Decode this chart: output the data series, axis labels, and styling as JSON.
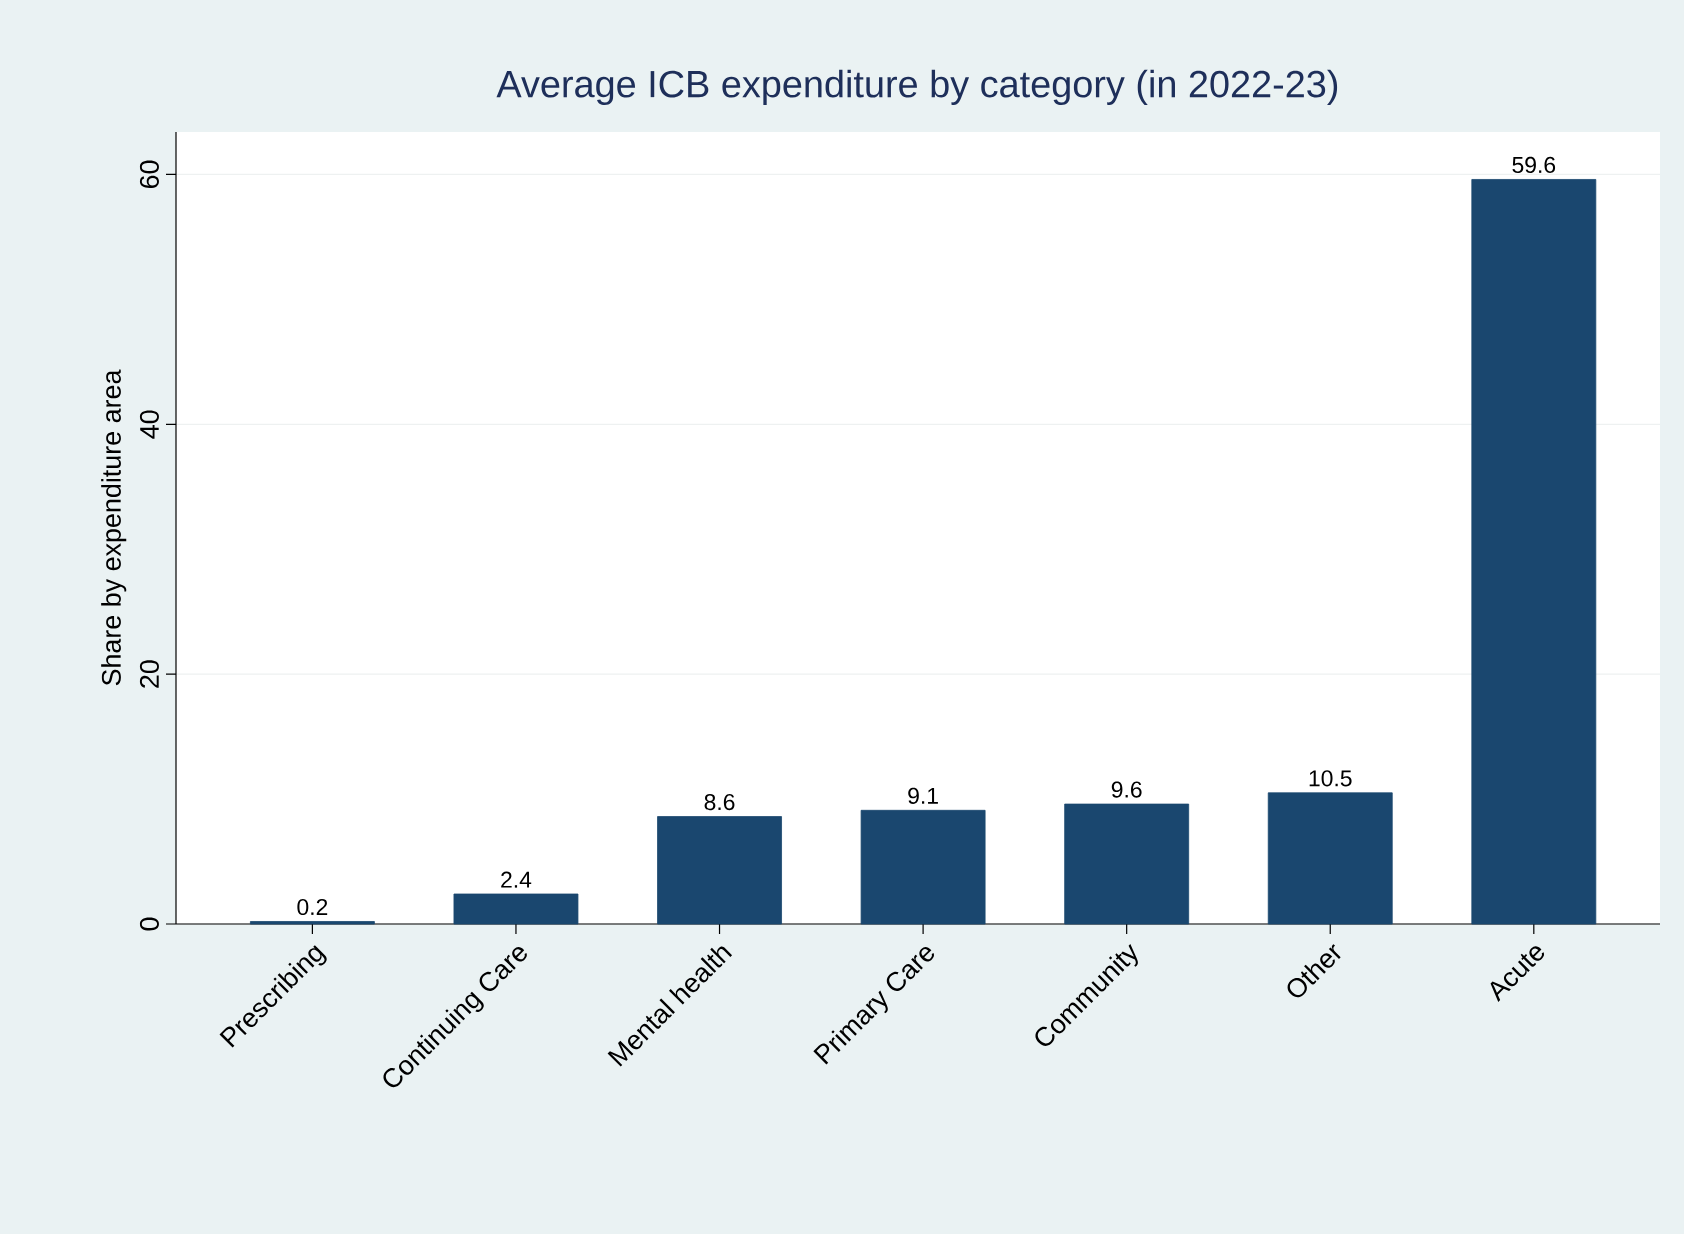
{
  "chart_data": {
    "type": "bar",
    "title": "Average ICB expenditure by category (in 2022-23)",
    "ylabel": "Share by expenditure area",
    "categories": [
      "Prescribing",
      "Continuing Care",
      "Mental health",
      "Primary Care",
      "Community",
      "Other",
      "Acute"
    ],
    "values": [
      0.2,
      2.4,
      8.6,
      9.1,
      9.6,
      10.5,
      59.6
    ],
    "color": "#1a476f",
    "ylim": [
      0,
      63.4
    ],
    "yticks": [
      0,
      20,
      40,
      60
    ],
    "grid": "y",
    "data_labels": true
  }
}
